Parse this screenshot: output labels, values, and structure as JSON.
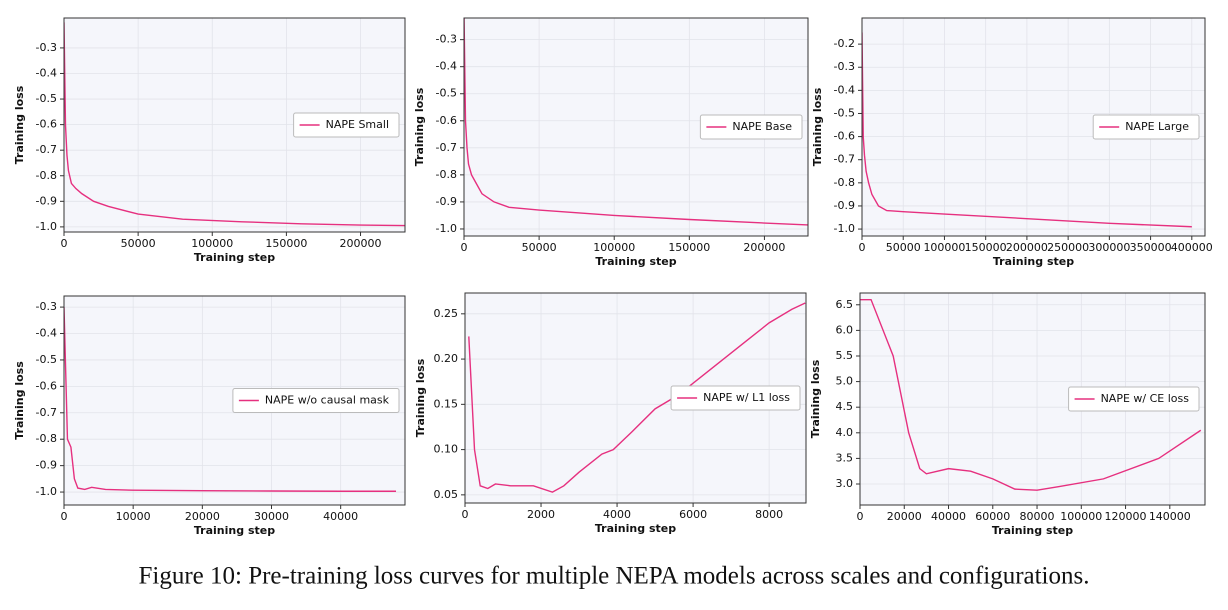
{
  "chart_data": [
    {
      "type": "line",
      "xlabel": "Training step",
      "ylabel": "Training loss",
      "grid": true,
      "legend": "right",
      "xlim": [
        0,
        230000
      ],
      "ylim": [
        -1.02,
        -0.183
      ],
      "xticks": [
        0,
        50000,
        100000,
        150000,
        200000
      ],
      "yticks": [
        -0.3,
        -0.4,
        -0.5,
        -0.6,
        -0.7,
        -0.8,
        -0.9,
        {
          "value": -1.0,
          "label": "-1.0"
        }
      ],
      "series": [
        {
          "name": "NAPE Small",
          "color": "#e6307f",
          "x": [
            0,
            1000,
            2000,
            3000,
            5000,
            8000,
            12000,
            20000,
            30000,
            50000,
            80000,
            120000,
            160000,
            200000,
            230000
          ],
          "values": [
            -0.2,
            -0.6,
            -0.72,
            -0.78,
            -0.83,
            -0.85,
            -0.87,
            -0.9,
            -0.92,
            -0.95,
            -0.97,
            -0.98,
            -0.988,
            -0.993,
            -0.995
          ]
        }
      ]
    },
    {
      "type": "line",
      "xlabel": "Training step",
      "ylabel": "Training loss",
      "grid": true,
      "legend": "right",
      "xlim": [
        0,
        229000
      ],
      "ylim": [
        -1.026,
        -0.22
      ],
      "xticks": [
        0,
        50000,
        100000,
        150000,
        200000
      ],
      "yticks": [
        -0.3,
        -0.4,
        -0.5,
        -0.6,
        -0.7,
        -0.8,
        -0.9,
        {
          "value": -1.0,
          "label": "-1.0"
        }
      ],
      "series": [
        {
          "name": "NAPE Base",
          "color": "#e6307f",
          "x": [
            0,
            1000,
            2000,
            3000,
            5000,
            8000,
            12000,
            20000,
            30000,
            50000,
            100000,
            150000,
            200000,
            229000
          ],
          "values": [
            -0.2,
            -0.6,
            -0.7,
            -0.76,
            -0.8,
            -0.83,
            -0.87,
            -0.9,
            -0.92,
            -0.93,
            -0.95,
            -0.965,
            -0.978,
            -0.985
          ]
        }
      ]
    },
    {
      "type": "line",
      "xlabel": "Training step",
      "ylabel": "Training loss",
      "grid": true,
      "legend": "right",
      "xlim": [
        0,
        416000
      ],
      "ylim": [
        -1.03,
        -0.087
      ],
      "xticks": [
        0,
        50000,
        100000,
        150000,
        200000,
        250000,
        300000,
        350000,
        400000
      ],
      "yticks": [
        -0.2,
        -0.3,
        -0.4,
        -0.5,
        -0.6,
        -0.7,
        -0.8,
        -0.9,
        {
          "value": -1.0,
          "label": "-1.0"
        }
      ],
      "series": [
        {
          "name": "NAPE Large",
          "color": "#e6307f",
          "x": [
            0,
            1500,
            3000,
            5000,
            8000,
            12000,
            20000,
            30000,
            50000,
            100000,
            200000,
            300000,
            400000
          ],
          "values": [
            -0.15,
            -0.6,
            -0.68,
            -0.75,
            -0.8,
            -0.85,
            -0.9,
            -0.92,
            -0.925,
            -0.935,
            -0.955,
            -0.975,
            -0.99
          ]
        }
      ]
    },
    {
      "type": "line",
      "xlabel": "Training step",
      "ylabel": "Training loss",
      "grid": true,
      "legend": "right",
      "xlim": [
        0,
        49300
      ],
      "ylim": [
        -1.049,
        -0.258
      ],
      "xticks": [
        0,
        10000,
        20000,
        30000,
        40000
      ],
      "yticks": [
        -0.3,
        -0.4,
        -0.5,
        -0.6,
        -0.7,
        -0.8,
        -0.9,
        {
          "value": -1.0,
          "label": "-1.0"
        }
      ],
      "series": [
        {
          "name": "NAPE w/o causal mask",
          "color": "#e6307f",
          "x": [
            0,
            300,
            500,
            1000,
            1500,
            2000,
            3000,
            4000,
            6000,
            10000,
            20000,
            30000,
            40000,
            48000
          ],
          "values": [
            -0.3,
            -0.6,
            -0.8,
            -0.83,
            -0.95,
            -0.985,
            -0.99,
            -0.982,
            -0.99,
            -0.993,
            -0.995,
            -0.996,
            -0.997,
            -0.997
          ]
        }
      ]
    },
    {
      "type": "line",
      "xlabel": "Training step",
      "ylabel": "Training loss",
      "grid": true,
      "legend": "right",
      "xlim": [
        0,
        8970
      ],
      "ylim": [
        0.041,
        0.273
      ],
      "xticks": [
        0,
        2000,
        4000,
        6000,
        8000
      ],
      "yticks": [
        0.05,
        {
          "value": 0.1,
          "label": "0.10"
        },
        0.15,
        {
          "value": 0.2,
          "label": "0.20"
        },
        0.25
      ],
      "series": [
        {
          "name": "NAPE w/ L1 loss",
          "color": "#e6307f",
          "x": [
            100,
            250,
            400,
            600,
            800,
            1200,
            1800,
            2300,
            2600,
            3000,
            3600,
            3900,
            4400,
            5000,
            5600,
            6200,
            6800,
            7400,
            8000,
            8600,
            8950
          ],
          "values": [
            0.225,
            0.1,
            0.06,
            0.057,
            0.062,
            0.06,
            0.06,
            0.053,
            0.06,
            0.075,
            0.095,
            0.1,
            0.12,
            0.145,
            0.16,
            0.18,
            0.2,
            0.22,
            0.24,
            0.255,
            0.262
          ]
        }
      ]
    },
    {
      "type": "line",
      "xlabel": "Training step",
      "ylabel": "Training loss",
      "grid": true,
      "legend": "right",
      "xlim": [
        0,
        155900
      ],
      "ylim": [
        2.59,
        6.73
      ],
      "xticks": [
        0,
        20000,
        40000,
        60000,
        80000,
        100000,
        120000,
        140000
      ],
      "yticks": [
        {
          "value": 3.0,
          "label": "3.0"
        },
        3.5,
        {
          "value": 4.0,
          "label": "4.0"
        },
        4.5,
        {
          "value": 5.0,
          "label": "5.0"
        },
        5.5,
        {
          "value": 6.0,
          "label": "6.0"
        },
        6.5
      ],
      "series": [
        {
          "name": "NAPE w/ CE loss",
          "color": "#e6307f",
          "x": [
            0,
            5000,
            15000,
            22000,
            27000,
            30000,
            40000,
            50000,
            60000,
            70000,
            80000,
            90000,
            110000,
            135000,
            154000
          ],
          "values": [
            6.6,
            6.6,
            5.5,
            4.0,
            3.3,
            3.2,
            3.3,
            3.25,
            3.1,
            2.9,
            2.88,
            2.95,
            3.1,
            3.5,
            4.05
          ]
        }
      ]
    }
  ],
  "caption": "Figure 10: Pre-training loss curves for multiple NEPA models across scales and configurations."
}
